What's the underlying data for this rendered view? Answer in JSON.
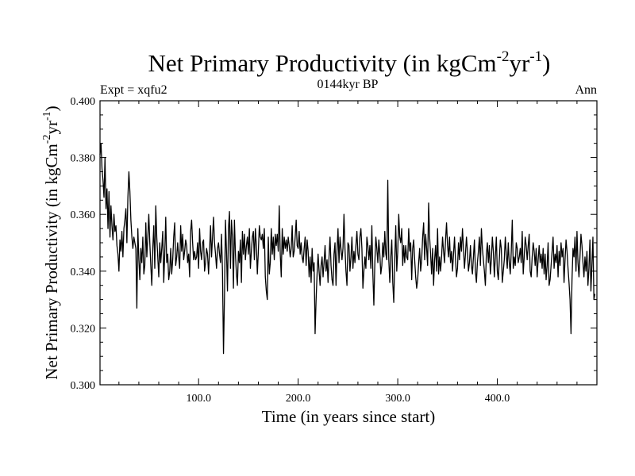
{
  "chart_data": {
    "type": "line",
    "title_main": "Net Primary Productivity (in kgCm",
    "title_sup1": "-2",
    "title_mid": "yr",
    "title_sup2": "-1",
    "title_end": ")",
    "subtitle_left": "Expt = xqfu2",
    "subtitle_center": "0144kyr BP",
    "subtitle_right": "Ann",
    "xlabel": "Time (in years since start)",
    "ylabel_main": "Net Primary Productivity (in kgCm",
    "ylabel_sup1": "-2",
    "ylabel_mid": "yr",
    "ylabel_sup2": "-1",
    "ylabel_end": ")",
    "xlim": [
      1,
      500
    ],
    "ylim": [
      0.3,
      0.4
    ],
    "x_ticks": [
      100,
      200,
      300,
      400
    ],
    "x_tick_labels": [
      "100.0",
      "200.0",
      "300.0",
      "400.0"
    ],
    "y_ticks": [
      0.3,
      0.32,
      0.34,
      0.36,
      0.38,
      0.4
    ],
    "y_tick_labels": [
      "0.300",
      "0.320",
      "0.340",
      "0.360",
      "0.380",
      "0.400"
    ],
    "series": [
      {
        "name": "Net Primary Productivity",
        "x_start": 1,
        "x_step": 1,
        "values": [
          0.381,
          0.385,
          0.376,
          0.372,
          0.366,
          0.38,
          0.362,
          0.369,
          0.355,
          0.368,
          0.352,
          0.363,
          0.356,
          0.351,
          0.36,
          0.354,
          0.356,
          0.349,
          0.346,
          0.34,
          0.351,
          0.347,
          0.354,
          0.345,
          0.355,
          0.358,
          0.362,
          0.35,
          0.366,
          0.375,
          0.368,
          0.358,
          0.352,
          0.348,
          0.352,
          0.35,
          0.348,
          0.327,
          0.355,
          0.344,
          0.337,
          0.348,
          0.343,
          0.352,
          0.339,
          0.342,
          0.357,
          0.345,
          0.352,
          0.36,
          0.35,
          0.342,
          0.335,
          0.348,
          0.356,
          0.341,
          0.363,
          0.352,
          0.345,
          0.338,
          0.35,
          0.343,
          0.348,
          0.354,
          0.336,
          0.346,
          0.359,
          0.343,
          0.346,
          0.337,
          0.34,
          0.348,
          0.339,
          0.344,
          0.352,
          0.357,
          0.342,
          0.345,
          0.35,
          0.345,
          0.341,
          0.356,
          0.347,
          0.353,
          0.344,
          0.347,
          0.351,
          0.349,
          0.343,
          0.346,
          0.338,
          0.354,
          0.358,
          0.35,
          0.344,
          0.347,
          0.344,
          0.345,
          0.35,
          0.341,
          0.355,
          0.347,
          0.344,
          0.35,
          0.351,
          0.34,
          0.343,
          0.348,
          0.346,
          0.339,
          0.347,
          0.356,
          0.345,
          0.352,
          0.359,
          0.35,
          0.346,
          0.341,
          0.348,
          0.35,
          0.346,
          0.343,
          0.353,
          0.34,
          0.311,
          0.331,
          0.358,
          0.347,
          0.333,
          0.355,
          0.361,
          0.341,
          0.358,
          0.352,
          0.334,
          0.358,
          0.346,
          0.339,
          0.335,
          0.347,
          0.343,
          0.351,
          0.336,
          0.354,
          0.346,
          0.353,
          0.344,
          0.349,
          0.352,
          0.346,
          0.355,
          0.341,
          0.347,
          0.352,
          0.354,
          0.344,
          0.355,
          0.349,
          0.339,
          0.347,
          0.356,
          0.352,
          0.351,
          0.353,
          0.348,
          0.355,
          0.338,
          0.333,
          0.33,
          0.352,
          0.339,
          0.343,
          0.355,
          0.346,
          0.352,
          0.344,
          0.353,
          0.349,
          0.353,
          0.347,
          0.363,
          0.346,
          0.338,
          0.355,
          0.346,
          0.352,
          0.348,
          0.351,
          0.347,
          0.352,
          0.349,
          0.345,
          0.348,
          0.356,
          0.345,
          0.347,
          0.352,
          0.358,
          0.349,
          0.348,
          0.354,
          0.346,
          0.35,
          0.345,
          0.343,
          0.348,
          0.352,
          0.342,
          0.351,
          0.347,
          0.338,
          0.345,
          0.336,
          0.348,
          0.34,
          0.343,
          0.318,
          0.33,
          0.339,
          0.346,
          0.34,
          0.335,
          0.342,
          0.345,
          0.338,
          0.343,
          0.349,
          0.34,
          0.344,
          0.336,
          0.345,
          0.352,
          0.342,
          0.337,
          0.335,
          0.346,
          0.35,
          0.335,
          0.347,
          0.355,
          0.343,
          0.352,
          0.348,
          0.344,
          0.348,
          0.36,
          0.348,
          0.34,
          0.335,
          0.35,
          0.349,
          0.34,
          0.345,
          0.352,
          0.341,
          0.347,
          0.343,
          0.349,
          0.354,
          0.346,
          0.344,
          0.352,
          0.355,
          0.348,
          0.334,
          0.34,
          0.345,
          0.341,
          0.352,
          0.349,
          0.344,
          0.349,
          0.341,
          0.356,
          0.339,
          0.328,
          0.343,
          0.352,
          0.348,
          0.343,
          0.351,
          0.346,
          0.339,
          0.342,
          0.35,
          0.345,
          0.354,
          0.346,
          0.344,
          0.372,
          0.344,
          0.336,
          0.345,
          0.351,
          0.336,
          0.329,
          0.344,
          0.356,
          0.34,
          0.347,
          0.36,
          0.352,
          0.35,
          0.355,
          0.342,
          0.349,
          0.343,
          0.349,
          0.345,
          0.344,
          0.355,
          0.347,
          0.35,
          0.337,
          0.348,
          0.351,
          0.344,
          0.338,
          0.334,
          0.337,
          0.343,
          0.348,
          0.34,
          0.344,
          0.352,
          0.357,
          0.344,
          0.353,
          0.348,
          0.342,
          0.364,
          0.352,
          0.346,
          0.339,
          0.348,
          0.335,
          0.344,
          0.349,
          0.34,
          0.355,
          0.339,
          0.345,
          0.34,
          0.345,
          0.352,
          0.347,
          0.343,
          0.351,
          0.357,
          0.349,
          0.345,
          0.352,
          0.343,
          0.347,
          0.34,
          0.346,
          0.352,
          0.344,
          0.338,
          0.341,
          0.35,
          0.344,
          0.352,
          0.347,
          0.355,
          0.348,
          0.341,
          0.346,
          0.352,
          0.347,
          0.34,
          0.343,
          0.349,
          0.342,
          0.339,
          0.345,
          0.351,
          0.34,
          0.336,
          0.343,
          0.347,
          0.352,
          0.342,
          0.355,
          0.348,
          0.344,
          0.34,
          0.335,
          0.346,
          0.35,
          0.343,
          0.349,
          0.339,
          0.344,
          0.352,
          0.347,
          0.338,
          0.345,
          0.352,
          0.34,
          0.337,
          0.344,
          0.351,
          0.348,
          0.336,
          0.34,
          0.344,
          0.352,
          0.346,
          0.341,
          0.35,
          0.343,
          0.339,
          0.347,
          0.358,
          0.341,
          0.345,
          0.342,
          0.35,
          0.348,
          0.343,
          0.345,
          0.348,
          0.343,
          0.354,
          0.339,
          0.345,
          0.352,
          0.349,
          0.344,
          0.349,
          0.353,
          0.34,
          0.338,
          0.345,
          0.35,
          0.347,
          0.342,
          0.348,
          0.338,
          0.344,
          0.349,
          0.343,
          0.346,
          0.341,
          0.348,
          0.339,
          0.346,
          0.337,
          0.342,
          0.35,
          0.335,
          0.337,
          0.342,
          0.347,
          0.352,
          0.341,
          0.346,
          0.343,
          0.349,
          0.338,
          0.347,
          0.342,
          0.35,
          0.345,
          0.348,
          0.336,
          0.344,
          0.351,
          0.347,
          0.341,
          0.336,
          0.33,
          0.318,
          0.337,
          0.348,
          0.345,
          0.352,
          0.34,
          0.354,
          0.343,
          0.338,
          0.345,
          0.353,
          0.349,
          0.343,
          0.338,
          0.345,
          0.34,
          0.347,
          0.335,
          0.341,
          0.351,
          0.333,
          0.342,
          0.352,
          0.33,
          0.332
        ]
      }
    ]
  }
}
